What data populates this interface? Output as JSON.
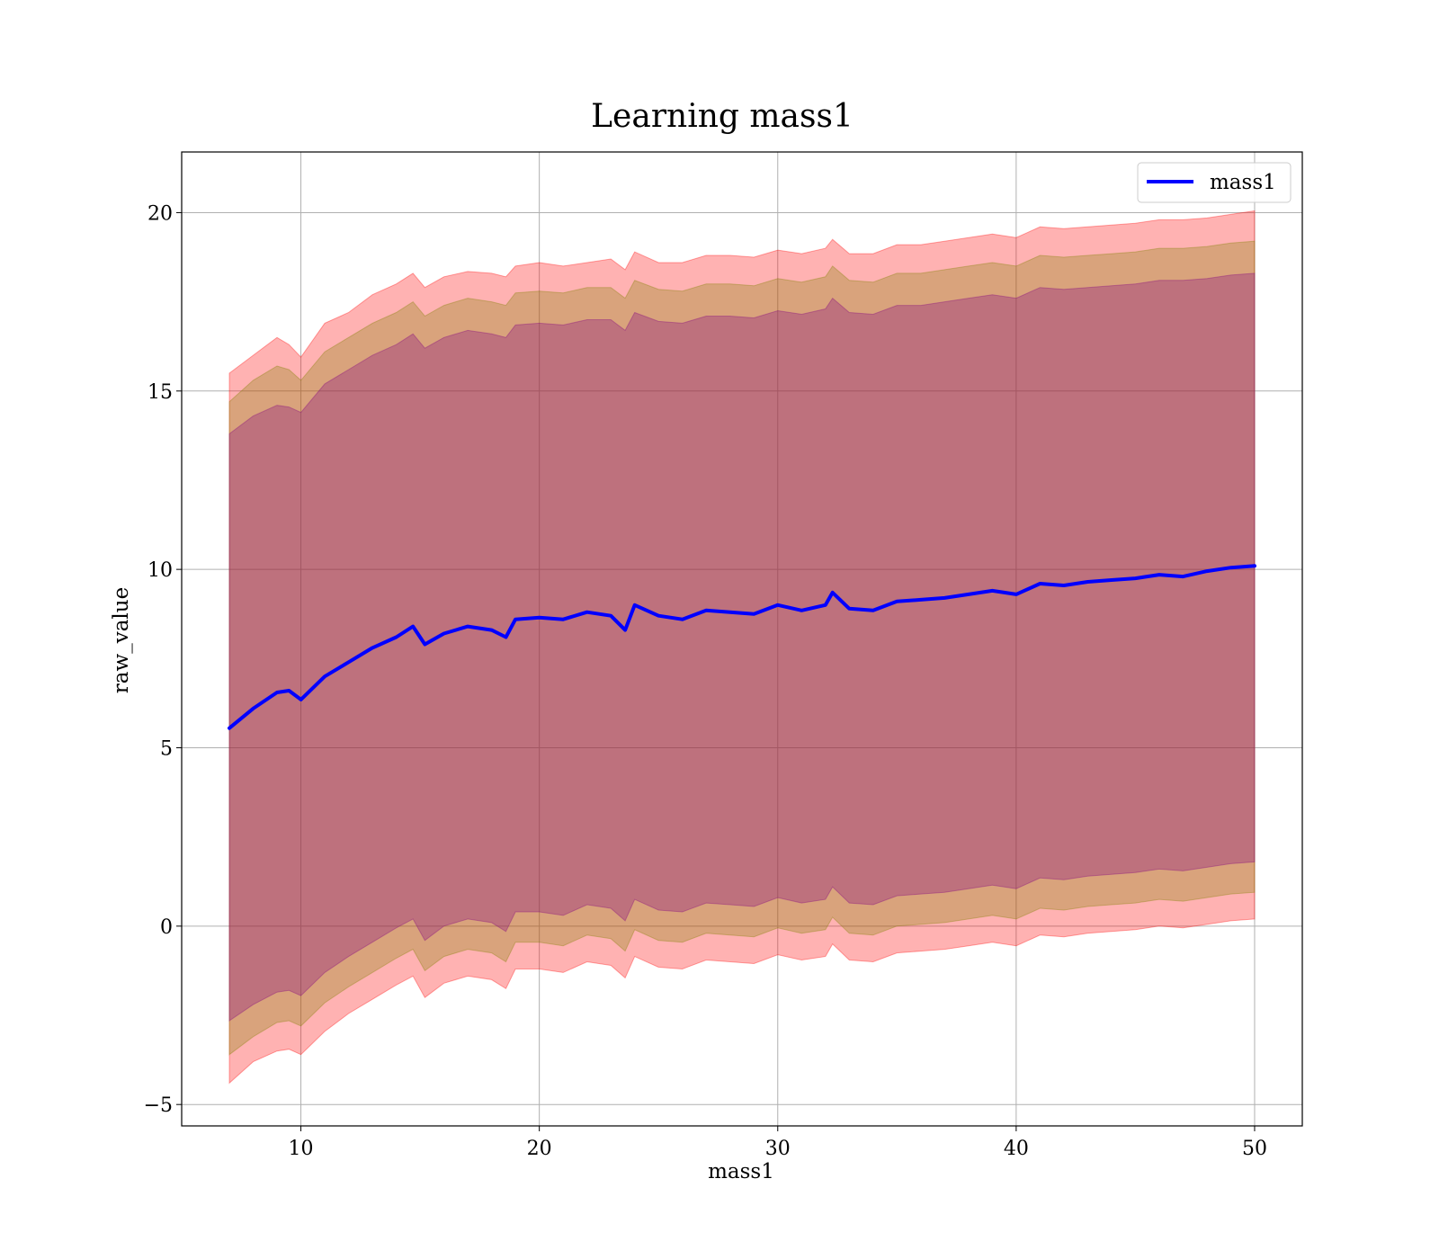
{
  "chart_data": {
    "type": "line",
    "title": "Learning mass1",
    "xlabel": "mass1",
    "ylabel": "raw_value",
    "xlim": [
      5,
      52
    ],
    "ylim": [
      -5.6,
      21.7
    ],
    "xticks": [
      10,
      20,
      30,
      40,
      50
    ],
    "yticks": [
      -5,
      0,
      5,
      10,
      15,
      20
    ],
    "xtick_labels": [
      "10",
      "20",
      "30",
      "40",
      "50"
    ],
    "ytick_labels": [
      "−5",
      "0",
      "5",
      "10",
      "15",
      "20"
    ],
    "grid": true,
    "legend": {
      "placement": "top-right",
      "entries": [
        "mass1"
      ]
    },
    "colors": {
      "line": "#0000ff",
      "band_outer": "#ff0000",
      "band_middle": "#808000",
      "band_inner": "#800080"
    },
    "x": [
      7,
      8,
      9,
      9.5,
      10,
      11,
      12,
      13,
      14,
      14.7,
      15.2,
      16,
      17,
      18,
      18.6,
      19,
      20,
      21,
      22,
      23,
      23.6,
      24,
      25,
      26,
      27,
      28,
      29,
      30,
      31,
      32,
      32.3,
      33,
      34,
      35,
      36,
      37,
      38,
      39,
      40,
      41,
      42,
      43,
      44,
      45,
      46,
      47,
      48,
      49,
      50
    ],
    "series": [
      {
        "name": "mass1",
        "values": [
          5.55,
          6.1,
          6.55,
          6.6,
          6.35,
          7.0,
          7.4,
          7.8,
          8.1,
          8.4,
          7.9,
          8.2,
          8.4,
          8.3,
          8.1,
          8.6,
          8.65,
          8.6,
          8.8,
          8.7,
          8.3,
          9.0,
          8.7,
          8.6,
          8.85,
          8.8,
          8.75,
          9.0,
          8.85,
          9.0,
          9.35,
          8.9,
          8.85,
          9.1,
          9.15,
          9.2,
          9.3,
          9.4,
          9.3,
          9.6,
          9.55,
          9.65,
          9.7,
          9.75,
          9.85,
          9.8,
          9.95,
          10.05,
          10.1
        ]
      }
    ],
    "bands": [
      {
        "level": "outer",
        "upper": [
          15.5,
          16.0,
          16.5,
          16.3,
          15.95,
          16.9,
          17.2,
          17.7,
          18.0,
          18.3,
          17.9,
          18.2,
          18.35,
          18.3,
          18.2,
          18.5,
          18.6,
          18.5,
          18.6,
          18.7,
          18.4,
          18.9,
          18.6,
          18.6,
          18.8,
          18.8,
          18.75,
          18.95,
          18.85,
          19.0,
          19.25,
          18.85,
          18.85,
          19.1,
          19.1,
          19.2,
          19.3,
          19.4,
          19.3,
          19.6,
          19.55,
          19.6,
          19.65,
          19.7,
          19.8,
          19.8,
          19.85,
          19.95,
          20.05
        ],
        "lower": [
          -4.4,
          -3.8,
          -3.5,
          -3.45,
          -3.6,
          -2.95,
          -2.45,
          -2.05,
          -1.65,
          -1.4,
          -2.0,
          -1.6,
          -1.4,
          -1.5,
          -1.75,
          -1.2,
          -1.2,
          -1.3,
          -1.0,
          -1.1,
          -1.45,
          -0.85,
          -1.15,
          -1.2,
          -0.95,
          -1.0,
          -1.05,
          -0.8,
          -0.95,
          -0.85,
          -0.5,
          -0.95,
          -1.0,
          -0.75,
          -0.7,
          -0.65,
          -0.55,
          -0.45,
          -0.55,
          -0.25,
          -0.3,
          -0.2,
          -0.15,
          -0.1,
          0.0,
          -0.05,
          0.05,
          0.15,
          0.2
        ]
      },
      {
        "level": "middle",
        "upper": [
          14.7,
          15.3,
          15.7,
          15.6,
          15.3,
          16.1,
          16.5,
          16.9,
          17.2,
          17.5,
          17.1,
          17.4,
          17.6,
          17.5,
          17.4,
          17.75,
          17.8,
          17.75,
          17.9,
          17.9,
          17.6,
          18.1,
          17.85,
          17.8,
          18.0,
          18.0,
          17.95,
          18.15,
          18.05,
          18.2,
          18.5,
          18.1,
          18.05,
          18.3,
          18.3,
          18.4,
          18.5,
          18.6,
          18.5,
          18.8,
          18.75,
          18.8,
          18.85,
          18.9,
          19.0,
          19.0,
          19.05,
          19.15,
          19.2
        ],
        "lower": [
          -3.6,
          -3.1,
          -2.7,
          -2.65,
          -2.8,
          -2.15,
          -1.7,
          -1.3,
          -0.9,
          -0.65,
          -1.25,
          -0.85,
          -0.65,
          -0.75,
          -1.0,
          -0.45,
          -0.45,
          -0.55,
          -0.25,
          -0.35,
          -0.7,
          -0.1,
          -0.4,
          -0.45,
          -0.2,
          -0.25,
          -0.3,
          -0.05,
          -0.2,
          -0.1,
          0.25,
          -0.2,
          -0.25,
          0.0,
          0.05,
          0.1,
          0.2,
          0.3,
          0.2,
          0.5,
          0.45,
          0.55,
          0.6,
          0.65,
          0.75,
          0.7,
          0.8,
          0.9,
          0.95
        ]
      },
      {
        "level": "inner",
        "upper": [
          13.8,
          14.3,
          14.6,
          14.55,
          14.4,
          15.2,
          15.6,
          16.0,
          16.3,
          16.6,
          16.2,
          16.5,
          16.7,
          16.6,
          16.5,
          16.85,
          16.9,
          16.85,
          17.0,
          17.0,
          16.7,
          17.2,
          16.95,
          16.9,
          17.1,
          17.1,
          17.05,
          17.25,
          17.15,
          17.3,
          17.6,
          17.2,
          17.15,
          17.4,
          17.4,
          17.5,
          17.6,
          17.7,
          17.6,
          17.9,
          17.85,
          17.9,
          17.95,
          18.0,
          18.1,
          18.1,
          18.15,
          18.25,
          18.3
        ],
        "lower": [
          -2.65,
          -2.2,
          -1.85,
          -1.8,
          -1.95,
          -1.3,
          -0.85,
          -0.45,
          -0.05,
          0.2,
          -0.4,
          0.0,
          0.2,
          0.1,
          -0.15,
          0.4,
          0.4,
          0.3,
          0.6,
          0.5,
          0.15,
          0.75,
          0.45,
          0.4,
          0.65,
          0.6,
          0.55,
          0.8,
          0.65,
          0.75,
          1.1,
          0.65,
          0.6,
          0.85,
          0.9,
          0.95,
          1.05,
          1.15,
          1.05,
          1.35,
          1.3,
          1.4,
          1.45,
          1.5,
          1.6,
          1.55,
          1.65,
          1.75,
          1.8
        ]
      }
    ]
  }
}
